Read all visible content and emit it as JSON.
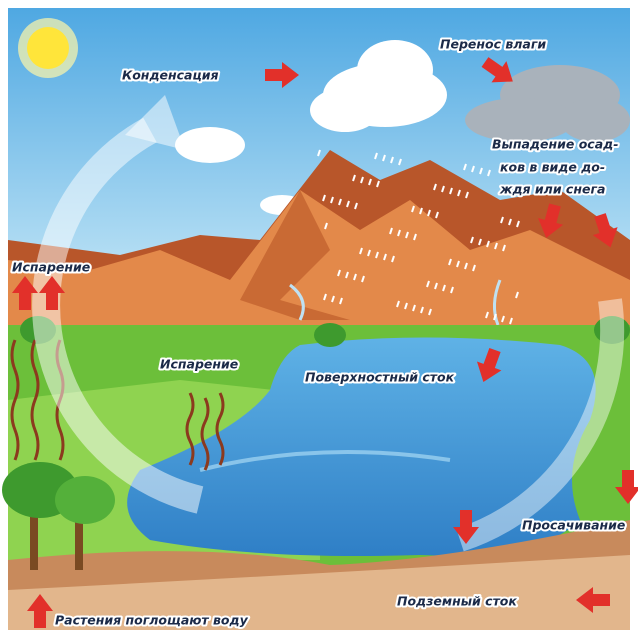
{
  "diagram": {
    "labels": {
      "condensation": "Конденсация",
      "moisture_transfer": "Перенос влаги",
      "precipitation": [
        "Выпадение осад-",
        "ков в виде до-",
        "ждя или снега"
      ],
      "evaporation_left": "Испарение",
      "evaporation_middle": "Испарение",
      "surface_runoff": "Поверхностный сток",
      "infiltration": "Просачивание",
      "underground_runoff": "Подземный сток",
      "plants_absorb": "Растения поглощают воду"
    }
  }
}
